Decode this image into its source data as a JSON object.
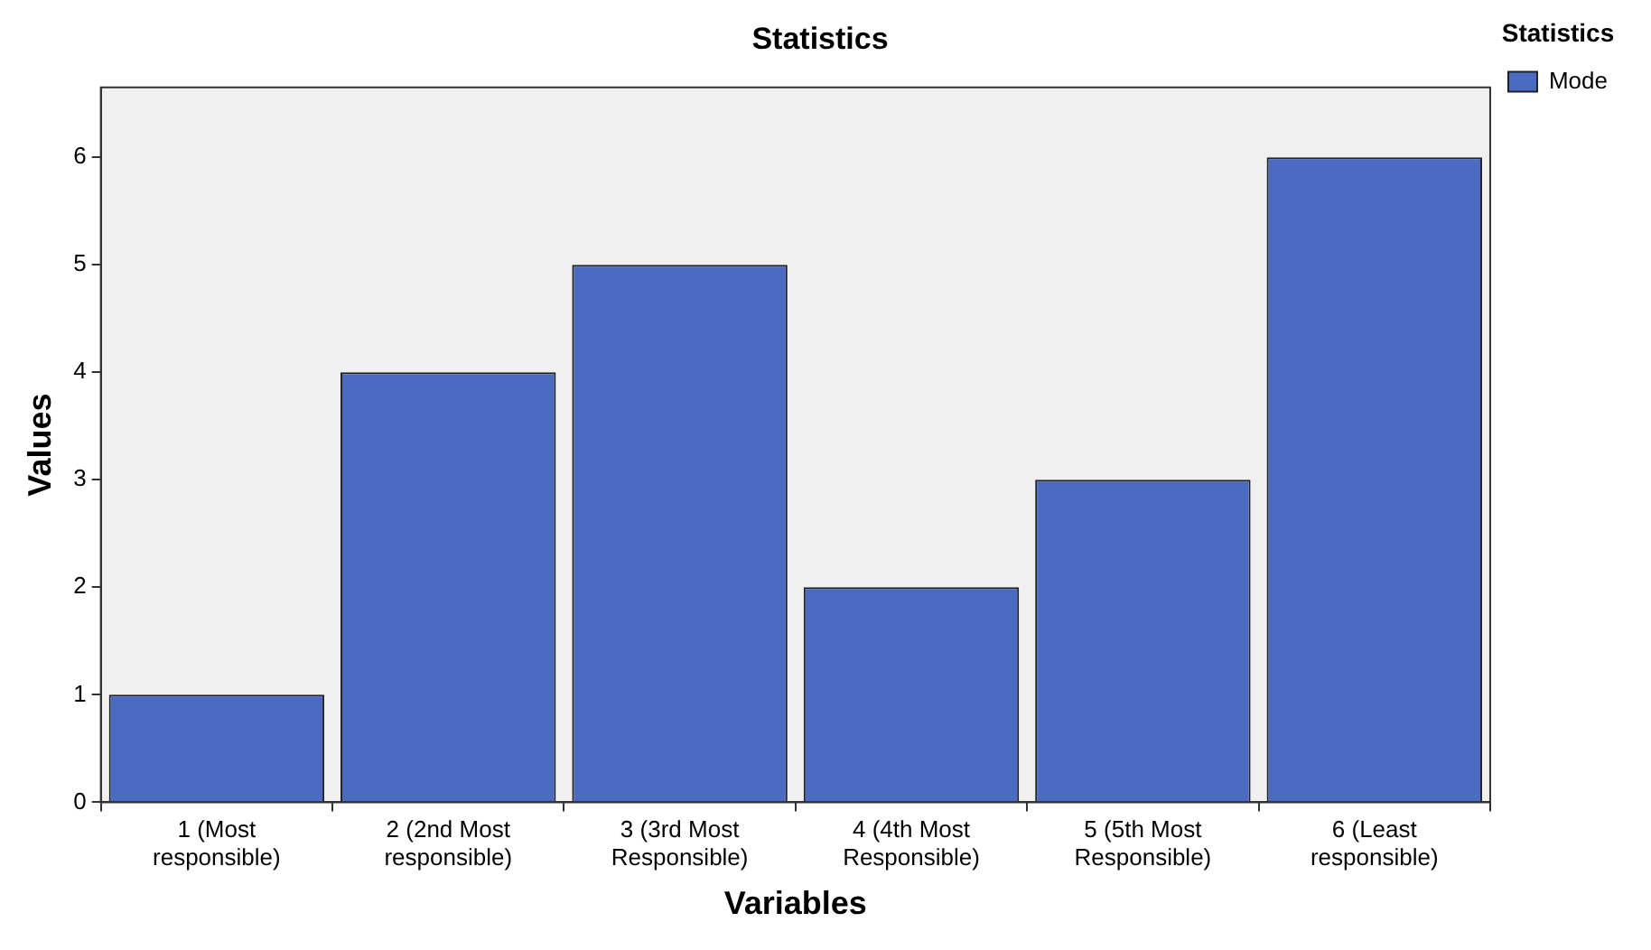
{
  "chart_data": {
    "type": "bar",
    "title": "Statistics",
    "xlabel": "Variables",
    "ylabel": "Values",
    "legend_title": "Statistics",
    "legend": "top right",
    "categories": [
      "1 (Most responsible)",
      "2 (2nd Most responsible)",
      "3 (3rd Most Responsible)",
      "4 (4th Most Responsible)",
      "5 (5th Most Responsible)",
      "6 (Least responsible)"
    ],
    "series": [
      {
        "name": "Mode",
        "color": "#4a6bbf",
        "values": [
          1,
          4,
          5,
          2,
          3,
          6
        ]
      }
    ],
    "ylim": [
      0,
      6.65
    ],
    "yticks": [
      0,
      1,
      2,
      3,
      4,
      5,
      6
    ],
    "grid": false
  }
}
